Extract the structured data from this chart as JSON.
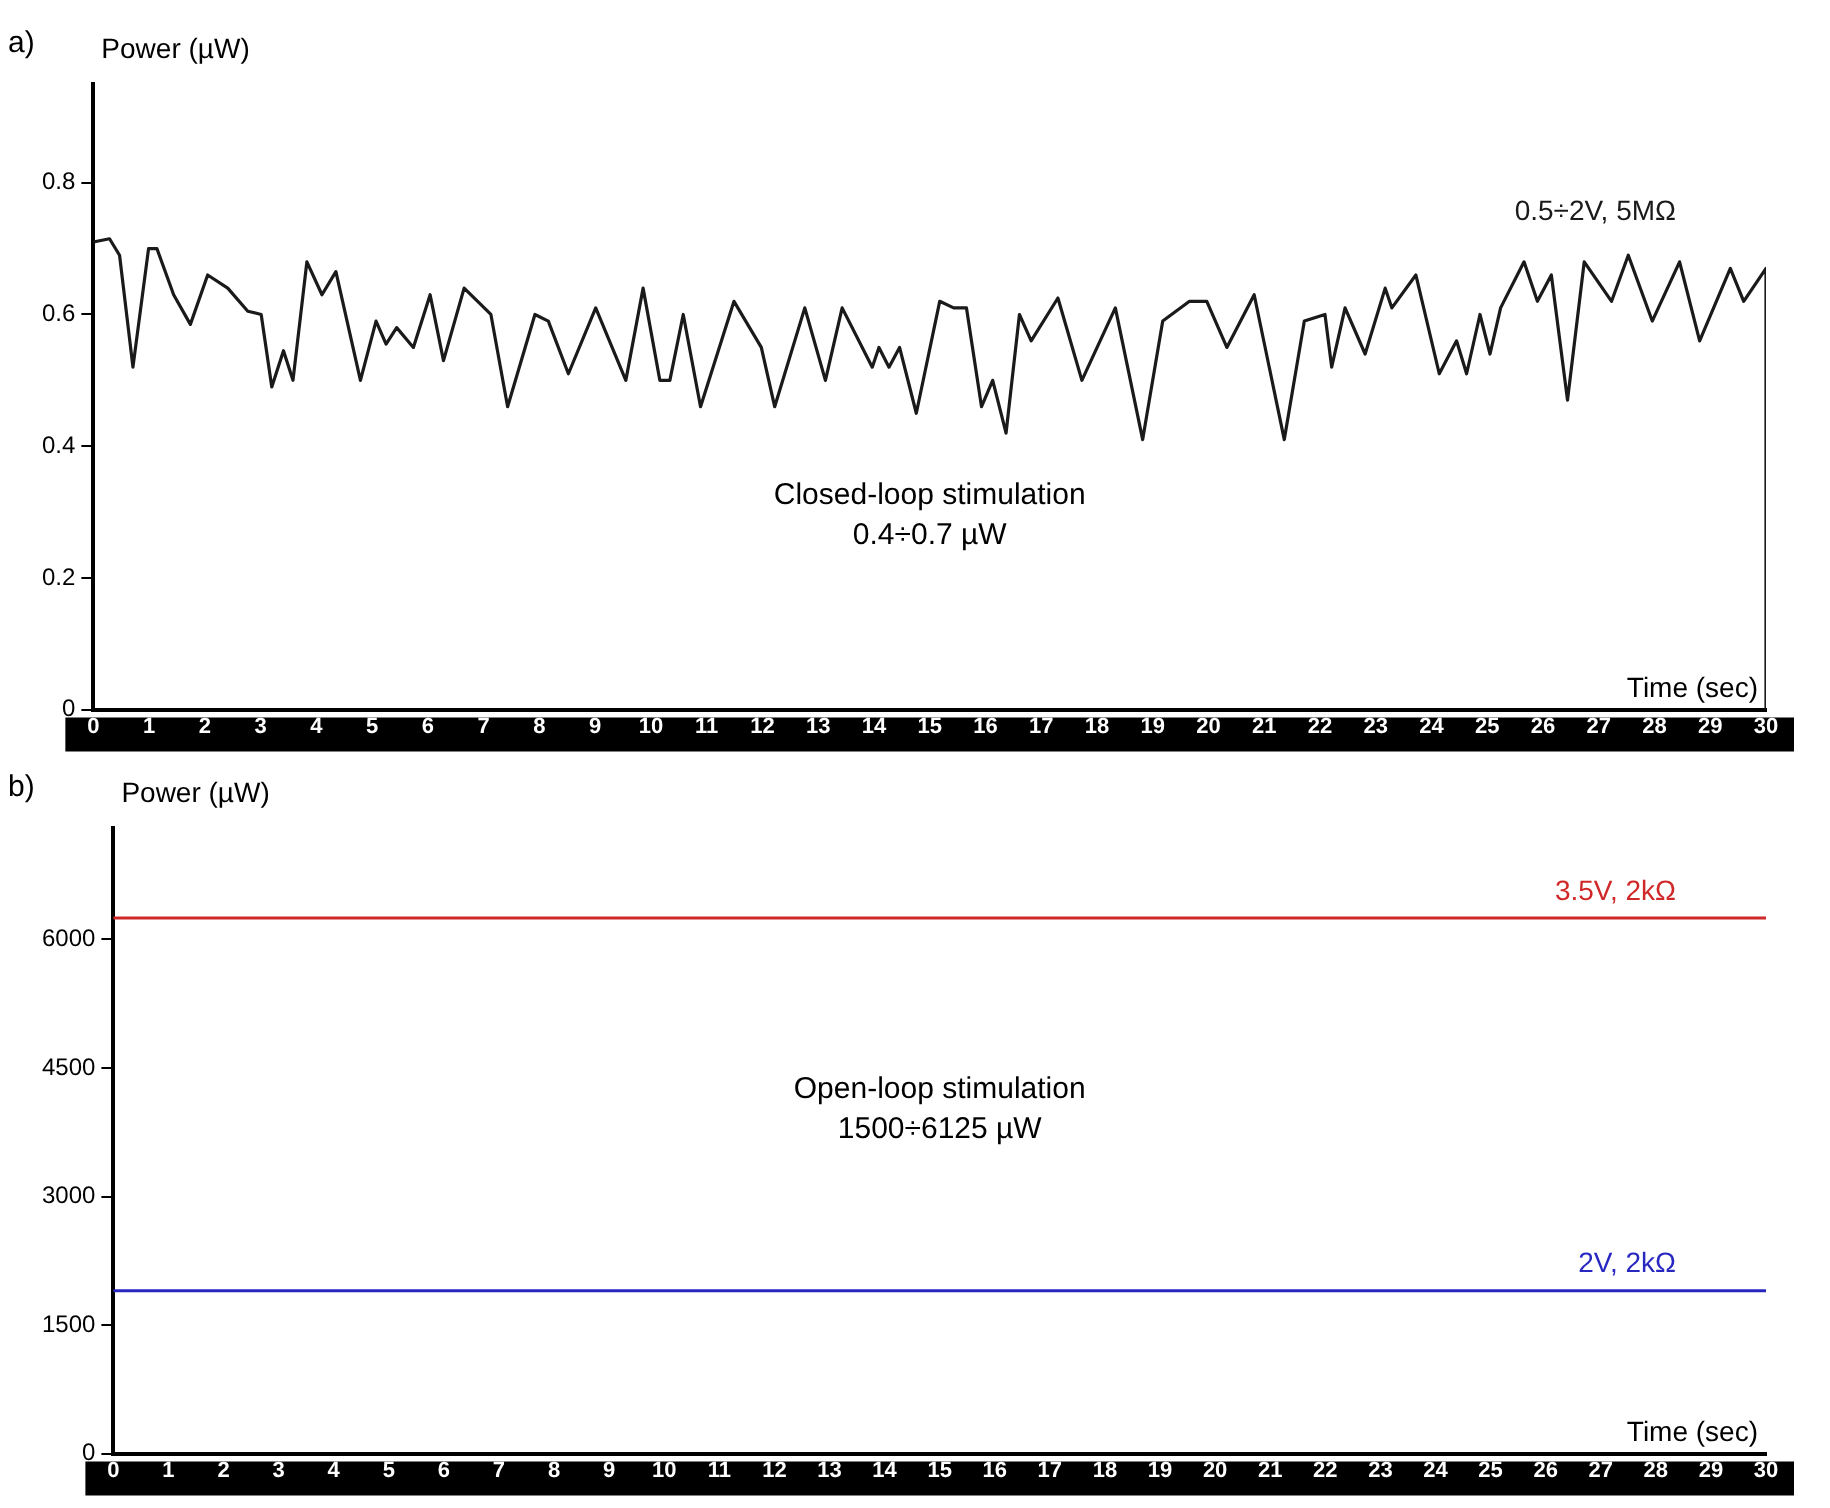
{
  "chart_data": [
    {
      "type": "line",
      "xlabel": "Time (sec)",
      "ylabel": "Power (µW)",
      "annotations": [
        "a)",
        "Closed-loop stimulation\n0.4÷0.7 µW"
      ],
      "xlim": [
        0,
        30
      ],
      "xticks": [
        0,
        1,
        2,
        3,
        4,
        5,
        6,
        7,
        8,
        9,
        10,
        11,
        12,
        13,
        14,
        15,
        16,
        17,
        18,
        19,
        20,
        21,
        22,
        23,
        24,
        25,
        26,
        27,
        28,
        29,
        30
      ],
      "ylim": [
        0,
        0.95
      ],
      "yticks": [
        0,
        0.2,
        0.4,
        0.6,
        0.8
      ],
      "grid": false,
      "legend": false,
      "marker": "none",
      "line_style": "solid",
      "series": [
        {
          "name": "0.5÷2V, 5MΩ",
          "color": "#1a1a1a",
          "x": [
            0,
            0.29,
            0.47,
            0.71,
            0.99,
            1.14,
            1.44,
            1.74,
            2.05,
            2.41,
            2.77,
            3.01,
            3.2,
            3.41,
            3.58,
            3.83,
            4.1,
            4.35,
            4.79,
            5.07,
            5.25,
            5.44,
            5.74,
            6.04,
            6.28,
            6.65,
            7.13,
            7.43,
            7.92,
            8.16,
            8.52,
            9.01,
            9.55,
            9.86,
            10.16,
            10.34,
            10.58,
            10.89,
            11.49,
            11.98,
            12.22,
            12.76,
            13.13,
            13.43,
            13.97,
            14.09,
            14.27,
            14.46,
            14.76,
            15.18,
            15.43,
            15.66,
            15.93,
            16.13,
            16.37,
            16.61,
            16.82,
            17.3,
            17.73,
            18.33,
            18.82,
            19.18,
            19.66,
            19.97,
            20.33,
            20.82,
            21.36,
            21.72,
            22.09,
            22.21,
            22.45,
            22.81,
            23.17,
            23.29,
            23.72,
            24.14,
            24.45,
            24.63,
            24.87,
            25.05,
            25.24,
            25.66,
            25.9,
            26.15,
            26.44,
            26.74,
            27.23,
            27.53,
            27.96,
            28.45,
            28.81,
            29.36,
            29.6,
            30,
            30
          ],
          "values": [
            0.71,
            0.715,
            0.69,
            0.52,
            0.7,
            0.7,
            0.63,
            0.585,
            0.66,
            0.64,
            0.605,
            0.6,
            0.49,
            0.545,
            0.5,
            0.68,
            0.63,
            0.665,
            0.5,
            0.59,
            0.555,
            0.58,
            0.55,
            0.63,
            0.53,
            0.64,
            0.6,
            0.46,
            0.6,
            0.59,
            0.51,
            0.61,
            0.5,
            0.64,
            0.5,
            0.5,
            0.6,
            0.46,
            0.62,
            0.55,
            0.46,
            0.61,
            0.5,
            0.61,
            0.52,
            0.55,
            0.52,
            0.55,
            0.45,
            0.62,
            0.61,
            0.61,
            0.46,
            0.5,
            0.42,
            0.6,
            0.56,
            0.625,
            0.5,
            0.61,
            0.41,
            0.59,
            0.62,
            0.62,
            0.55,
            0.63,
            0.41,
            0.59,
            0.6,
            0.52,
            0.61,
            0.54,
            0.64,
            0.61,
            0.66,
            0.51,
            0.56,
            0.51,
            0.6,
            0.54,
            0.61,
            0.68,
            0.62,
            0.66,
            0.47,
            0.68,
            0.62,
            0.69,
            0.59,
            0.68,
            0.56,
            0.67,
            0.62,
            0.67,
            0
          ]
        }
      ]
    },
    {
      "type": "line",
      "xlabel": "Time (sec)",
      "ylabel": "Power (µW)",
      "annotations": [
        "b)",
        "Open-loop stimulation\n1500÷6125 µW"
      ],
      "xlim": [
        0,
        30
      ],
      "xticks": [
        0,
        1,
        2,
        3,
        4,
        5,
        6,
        7,
        8,
        9,
        10,
        11,
        12,
        13,
        14,
        15,
        16,
        17,
        18,
        19,
        20,
        21,
        22,
        23,
        24,
        25,
        26,
        27,
        28,
        29,
        30
      ],
      "ylim": [
        0,
        7300
      ],
      "yticks": [
        0,
        1500,
        3000,
        4500,
        6000
      ],
      "grid": false,
      "legend": false,
      "marker": "none",
      "line_style": "solid",
      "series": [
        {
          "name": "3.5V, 2kΩ",
          "color": "#d02828",
          "x": [
            0,
            30
          ],
          "values": [
            6250,
            6250
          ]
        },
        {
          "name": "2V, 2kΩ",
          "color": "#2828c0",
          "x": [
            0,
            30
          ],
          "values": [
            1900,
            1900
          ]
        }
      ]
    }
  ]
}
